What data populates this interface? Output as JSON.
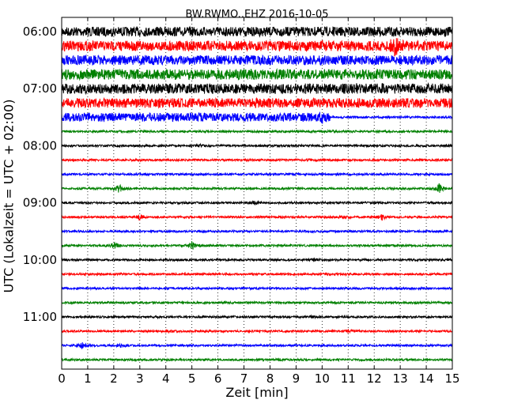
{
  "chart_data": {
    "type": "line",
    "title": "BW.RWMO..EHZ 2016-10-05",
    "xlabel": "Zeit  [min]",
    "ylabel": "UTC (Lokalzeit = UTC + 02:00)",
    "xlim": [
      0,
      15
    ],
    "x_ticks": [
      "0",
      "1",
      "2",
      "3",
      "4",
      "5",
      "6",
      "7",
      "8",
      "9",
      "10",
      "11",
      "12",
      "13",
      "14",
      "15"
    ],
    "y_tick_labels": [
      "06:00",
      "07:00",
      "08:00",
      "09:00",
      "10:00",
      "11:00"
    ],
    "grid": true,
    "colors": {
      "black": "#000000",
      "red": "#ff0000",
      "blue": "#0000ff",
      "green": "#008000"
    },
    "traces": [
      {
        "start": "06:00",
        "color": "black",
        "noise": 6.0,
        "events": []
      },
      {
        "start": "06:15",
        "color": "red",
        "noise": 6.5,
        "events": [
          [
            12.8,
            9
          ],
          [
            10.1,
            2
          ]
        ]
      },
      {
        "start": "06:30",
        "color": "blue",
        "noise": 6.0,
        "events": []
      },
      {
        "start": "06:45",
        "color": "green",
        "noise": 6.5,
        "events": []
      },
      {
        "start": "07:00",
        "color": "black",
        "noise": 6.5,
        "events": []
      },
      {
        "start": "07:15",
        "color": "red",
        "noise": 6.0,
        "events": []
      },
      {
        "start": "07:30",
        "color": "blue",
        "noise": 5.5,
        "events": [
          [
            10.0,
            3
          ]
        ],
        "quiet_after": 10.3
      },
      {
        "start": "07:45",
        "color": "green",
        "noise": 1.3,
        "events": [
          [
            10.5,
            1
          ]
        ]
      },
      {
        "start": "08:00",
        "color": "black",
        "noise": 1.3,
        "events": [
          [
            5.3,
            1
          ]
        ]
      },
      {
        "start": "08:15",
        "color": "red",
        "noise": 1.3,
        "events": [
          [
            9.6,
            1
          ]
        ]
      },
      {
        "start": "08:30",
        "color": "blue",
        "noise": 1.3,
        "events": []
      },
      {
        "start": "08:45",
        "color": "green",
        "noise": 1.3,
        "events": [
          [
            2.2,
            5
          ],
          [
            14.5,
            6
          ]
        ]
      },
      {
        "start": "09:00",
        "color": "black",
        "noise": 1.3,
        "events": [
          [
            7.4,
            3
          ]
        ]
      },
      {
        "start": "09:15",
        "color": "red",
        "noise": 1.3,
        "events": [
          [
            3.0,
            3
          ],
          [
            12.3,
            3
          ],
          [
            10.8,
            1
          ]
        ]
      },
      {
        "start": "09:30",
        "color": "blue",
        "noise": 1.3,
        "events": []
      },
      {
        "start": "09:45",
        "color": "green",
        "noise": 1.3,
        "events": [
          [
            2.0,
            4
          ],
          [
            5.0,
            6
          ]
        ]
      },
      {
        "start": "10:00",
        "color": "black",
        "noise": 1.3,
        "events": [
          [
            3.9,
            1
          ],
          [
            9.7,
            1
          ]
        ]
      },
      {
        "start": "10:15",
        "color": "red",
        "noise": 1.3,
        "events": []
      },
      {
        "start": "10:30",
        "color": "blue",
        "noise": 1.3,
        "events": []
      },
      {
        "start": "10:45",
        "color": "green",
        "noise": 1.3,
        "events": []
      },
      {
        "start": "11:00",
        "color": "black",
        "noise": 1.3,
        "events": [
          [
            9.6,
            1
          ]
        ]
      },
      {
        "start": "11:15",
        "color": "red",
        "noise": 1.3,
        "events": [
          [
            11.0,
            2
          ],
          [
            4.1,
            1
          ]
        ]
      },
      {
        "start": "11:30",
        "color": "blue",
        "noise": 1.3,
        "events": [
          [
            0.8,
            4
          ],
          [
            2.3,
            2
          ]
        ]
      },
      {
        "start": "11:45",
        "color": "green",
        "noise": 1.3,
        "events": [
          [
            8.4,
            1
          ]
        ]
      }
    ]
  }
}
